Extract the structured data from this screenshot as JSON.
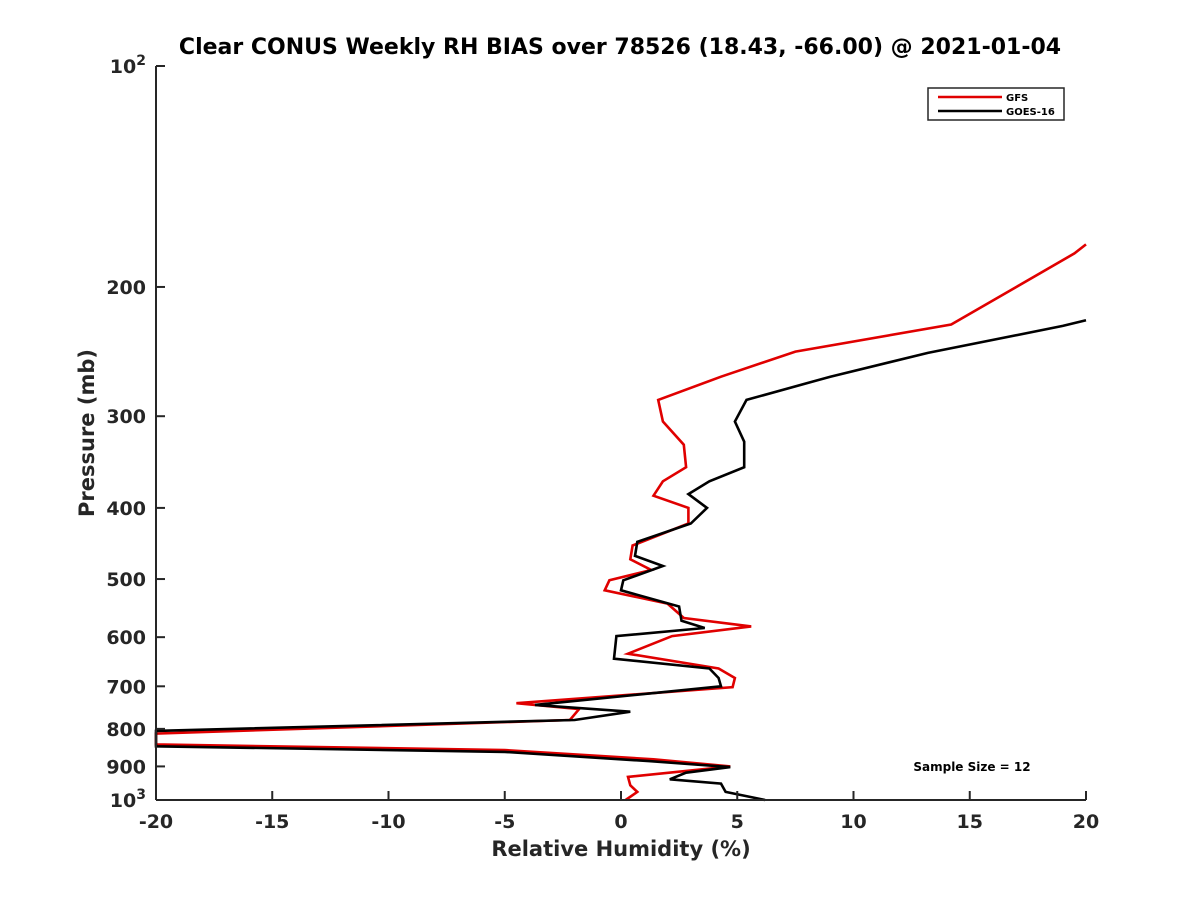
{
  "chart_data": {
    "type": "line",
    "title": "Clear CONUS Weekly RH BIAS over 78526 (18.43, -66.00) @ 2021-01-04",
    "xlabel": "Relative Humidity (%)",
    "ylabel": "Pressure (mb)",
    "xlim": [
      -20,
      20
    ],
    "ylim": [
      100,
      1000
    ],
    "y_scale": "log-reversed",
    "x_ticks": [
      "-20",
      "-15",
      "-10",
      "-5",
      "0",
      "5",
      "10",
      "15",
      "20"
    ],
    "y_ticks": [
      {
        "value": 100,
        "label": "10",
        "sup": "2"
      },
      {
        "value": 200,
        "label": "200",
        "sup": ""
      },
      {
        "value": 300,
        "label": "300",
        "sup": ""
      },
      {
        "value": 400,
        "label": "400",
        "sup": ""
      },
      {
        "value": 500,
        "label": "500",
        "sup": ""
      },
      {
        "value": 600,
        "label": "600",
        "sup": ""
      },
      {
        "value": 700,
        "label": "700",
        "sup": ""
      },
      {
        "value": 800,
        "label": "800",
        "sup": ""
      },
      {
        "value": 900,
        "label": "900",
        "sup": ""
      },
      {
        "value": 1000,
        "label": "10",
        "sup": "3"
      }
    ],
    "grid": false,
    "legend_position": "top-right",
    "annotation": "Sample Size = 12",
    "series": [
      {
        "name": "GFS",
        "color": "#e00000",
        "points": [
          [
            20.0,
            175
          ],
          [
            19.5,
            180
          ],
          [
            17.0,
            200
          ],
          [
            14.2,
            225
          ],
          [
            7.5,
            245
          ],
          [
            4.3,
            265
          ],
          [
            1.6,
            285
          ],
          [
            1.8,
            305
          ],
          [
            2.7,
            328
          ],
          [
            2.8,
            352
          ],
          [
            1.8,
            368
          ],
          [
            1.4,
            385
          ],
          [
            2.9,
            400
          ],
          [
            2.9,
            420
          ],
          [
            0.5,
            450
          ],
          [
            0.4,
            470
          ],
          [
            1.3,
            486
          ],
          [
            -0.5,
            502
          ],
          [
            -0.7,
            518
          ],
          [
            2.0,
            540
          ],
          [
            2.7,
            565
          ],
          [
            5.6,
            580
          ],
          [
            2.2,
            598
          ],
          [
            0.3,
            632
          ],
          [
            4.2,
            662
          ],
          [
            4.9,
            682
          ],
          [
            4.8,
            702
          ],
          [
            -4.5,
            738
          ],
          [
            -1.8,
            752
          ],
          [
            -2.2,
            778
          ],
          [
            -20.0,
            812
          ],
          [
            -20.0,
            840
          ],
          [
            -5.0,
            855
          ],
          [
            1.4,
            880
          ],
          [
            4.7,
            900
          ],
          [
            0.3,
            930
          ],
          [
            0.4,
            955
          ],
          [
            0.7,
            975
          ],
          [
            0.2,
            1000
          ]
        ]
      },
      {
        "name": "GOES-16",
        "color": "#000000",
        "points": [
          [
            20.0,
            222
          ],
          [
            19.0,
            226
          ],
          [
            13.2,
            246
          ],
          [
            9.0,
            265
          ],
          [
            5.4,
            285
          ],
          [
            4.9,
            305
          ],
          [
            5.3,
            325
          ],
          [
            5.3,
            352
          ],
          [
            3.8,
            368
          ],
          [
            2.9,
            383
          ],
          [
            3.7,
            400
          ],
          [
            3.0,
            420
          ],
          [
            0.7,
            445
          ],
          [
            0.6,
            465
          ],
          [
            1.8,
            480
          ],
          [
            0.1,
            502
          ],
          [
            0.0,
            518
          ],
          [
            2.5,
            545
          ],
          [
            2.6,
            570
          ],
          [
            3.6,
            583
          ],
          [
            -0.2,
            598
          ],
          [
            -0.3,
            642
          ],
          [
            3.8,
            662
          ],
          [
            4.2,
            682
          ],
          [
            4.3,
            700
          ],
          [
            -3.7,
            742
          ],
          [
            0.4,
            758
          ],
          [
            -2.0,
            778
          ],
          [
            -20.0,
            805
          ],
          [
            -20.0,
            845
          ],
          [
            -5.0,
            860
          ],
          [
            1.2,
            885
          ],
          [
            4.7,
            902
          ],
          [
            2.8,
            918
          ],
          [
            2.1,
            937
          ],
          [
            4.3,
            950
          ],
          [
            4.5,
            975
          ],
          [
            6.2,
            1000
          ]
        ]
      }
    ]
  }
}
